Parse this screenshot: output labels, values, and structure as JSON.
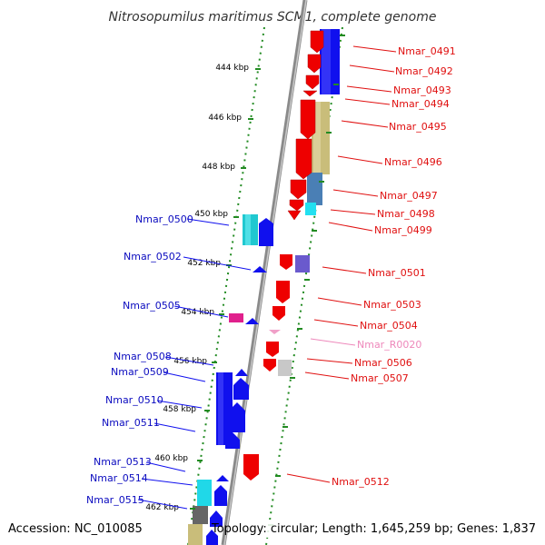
{
  "title": "Nitrosopumilus maritimus SCM1, complete genome",
  "accession": "Accession: NC_010085",
  "topology": "Topology: circular; Length: 1,645,259 bp; Genes: 1,837",
  "colors": {
    "reverse_label": "#0b0bbf",
    "forward_label": "#e01010",
    "rna_label": "#ee88bb",
    "tick": "#228b22",
    "backbone": "#808080"
  },
  "scale": {
    "ticks": [
      "444 kbp",
      "446 kbp",
      "448 kbp",
      "450 kbp",
      "452 kbp",
      "454 kbp",
      "456 kbp",
      "458 kbp",
      "460 kbp",
      "462 kbp"
    ]
  },
  "genes": {
    "reverse": [
      "Nmar_0500",
      "Nmar_0502",
      "Nmar_0505",
      "Nmar_0508",
      "Nmar_0509",
      "Nmar_0510",
      "Nmar_0511",
      "Nmar_0513",
      "Nmar_0514",
      "Nmar_0515"
    ],
    "forward": [
      "Nmar_0491",
      "Nmar_0492",
      "Nmar_0493",
      "Nmar_0494",
      "Nmar_0495",
      "Nmar_0496",
      "Nmar_0497",
      "Nmar_0498",
      "Nmar_0499",
      "Nmar_0501",
      "Nmar_0503",
      "Nmar_0504",
      "Nmar_R0020",
      "Nmar_0506",
      "Nmar_0507",
      "Nmar_0512"
    ]
  }
}
